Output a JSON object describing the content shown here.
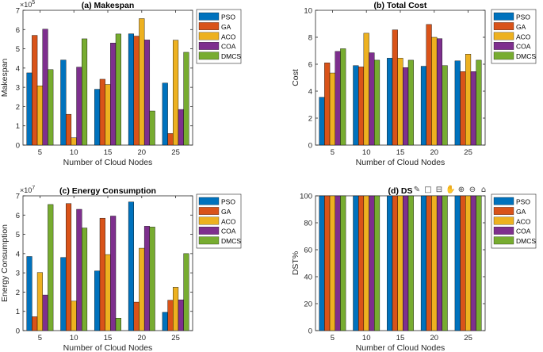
{
  "figure": {
    "colors": {
      "PSO": "#0072BD",
      "GA": "#D95319",
      "ACO": "#EDB120",
      "COA": "#7E2F8E",
      "DMCS": "#77AC30"
    },
    "toolbar_icons": [
      "brush-icon",
      "datatip-icon",
      "data-cursor-icon",
      "pan-icon",
      "zoom-in-icon",
      "zoom-out-icon",
      "home-icon"
    ]
  },
  "chart_data": [
    {
      "type": "bar",
      "title": "(a) Makespan",
      "xlabel": "Number of Cloud Nodes",
      "ylabel": "Makespan",
      "exponent_base": "×10",
      "exponent_power": "5",
      "categories": [
        "5",
        "10",
        "15",
        "20",
        "25"
      ],
      "ylim": [
        0,
        7
      ],
      "yticks": [
        "0",
        "1",
        "2",
        "3",
        "4",
        "5",
        "6",
        "7"
      ],
      "legend": [
        "PSO",
        "GA",
        "ACO",
        "COA",
        "DMCS"
      ],
      "legend_position": "outside-right",
      "series": [
        {
          "name": "PSO",
          "values": [
            3.75,
            4.42,
            2.9,
            5.78,
            3.22
          ]
        },
        {
          "name": "GA",
          "values": [
            5.7,
            1.6,
            3.42,
            5.66,
            0.6
          ]
        },
        {
          "name": "ACO",
          "values": [
            3.08,
            0.38,
            3.15,
            6.57,
            5.45
          ]
        },
        {
          "name": "COA",
          "values": [
            6.02,
            4.05,
            5.3,
            5.46,
            1.85
          ]
        },
        {
          "name": "DMCS",
          "values": [
            3.92,
            5.52,
            5.77,
            1.77,
            4.82
          ]
        }
      ]
    },
    {
      "type": "bar",
      "title": "(b) Total Cost",
      "xlabel": "Number of Cloud Nodes",
      "ylabel": "Cost",
      "categories": [
        "5",
        "10",
        "15",
        "20",
        "25"
      ],
      "ylim": [
        0,
        10
      ],
      "yticks": [
        "0",
        "2",
        "4",
        "6",
        "8",
        "10"
      ],
      "legend": [
        "PSO",
        "GA",
        "ACO",
        "COA",
        "DMCS"
      ],
      "legend_position": "outside-right",
      "series": [
        {
          "name": "PSO",
          "values": [
            3.55,
            5.9,
            6.45,
            5.85,
            6.25
          ]
        },
        {
          "name": "GA",
          "values": [
            6.1,
            5.8,
            8.55,
            8.95,
            5.45
          ]
        },
        {
          "name": "ACO",
          "values": [
            5.35,
            8.3,
            6.45,
            8.0,
            6.75
          ]
        },
        {
          "name": "COA",
          "values": [
            6.95,
            6.85,
            5.75,
            7.9,
            5.45
          ]
        },
        {
          "name": "DMCS",
          "values": [
            7.15,
            6.3,
            6.3,
            5.9,
            6.3
          ]
        }
      ]
    },
    {
      "type": "bar",
      "title": "(c) Energy Consumption",
      "xlabel": "Number of Cloud Nodes",
      "ylabel": "Energy Consumption",
      "exponent_base": "×10",
      "exponent_power": "7",
      "categories": [
        "5",
        "10",
        "15",
        "20",
        "25"
      ],
      "ylim": [
        0,
        7
      ],
      "yticks": [
        "0",
        "1",
        "2",
        "3",
        "4",
        "5",
        "6",
        "7"
      ],
      "legend": [
        "PSO",
        "GA",
        "ACO",
        "COA",
        "DMCS"
      ],
      "legend_position": "outside-right",
      "series": [
        {
          "name": "PSO",
          "values": [
            3.85,
            3.8,
            3.1,
            6.68,
            0.95
          ]
        },
        {
          "name": "GA",
          "values": [
            0.72,
            6.6,
            5.84,
            1.48,
            1.58
          ]
        },
        {
          "name": "ACO",
          "values": [
            3.02,
            1.53,
            3.95,
            4.28,
            2.25
          ]
        },
        {
          "name": "COA",
          "values": [
            1.85,
            6.3,
            5.95,
            5.42,
            1.6
          ]
        },
        {
          "name": "DMCS",
          "values": [
            6.55,
            5.33,
            0.65,
            5.38,
            4.0
          ]
        }
      ]
    },
    {
      "type": "bar",
      "title": "(d) DS",
      "xlabel": "Number of Cloud Nodes",
      "ylabel": "DST%",
      "categories": [
        "5",
        "10",
        "15",
        "20",
        "25"
      ],
      "ylim": [
        0,
        100
      ],
      "yticks": [
        "0",
        "20",
        "40",
        "60",
        "80",
        "100"
      ],
      "legend": [
        "PSO",
        "GA",
        "ACO",
        "COA",
        "DMCS"
      ],
      "legend_position": "outside-right",
      "series": [
        {
          "name": "PSO",
          "values": [
            100,
            100,
            100,
            100,
            100
          ]
        },
        {
          "name": "GA",
          "values": [
            100,
            100,
            100,
            100,
            100
          ]
        },
        {
          "name": "ACO",
          "values": [
            100,
            100,
            100,
            100,
            100
          ]
        },
        {
          "name": "COA",
          "values": [
            100,
            100,
            100,
            100,
            100
          ]
        },
        {
          "name": "DMCS",
          "values": [
            100,
            100,
            100,
            100,
            100
          ]
        }
      ]
    }
  ]
}
